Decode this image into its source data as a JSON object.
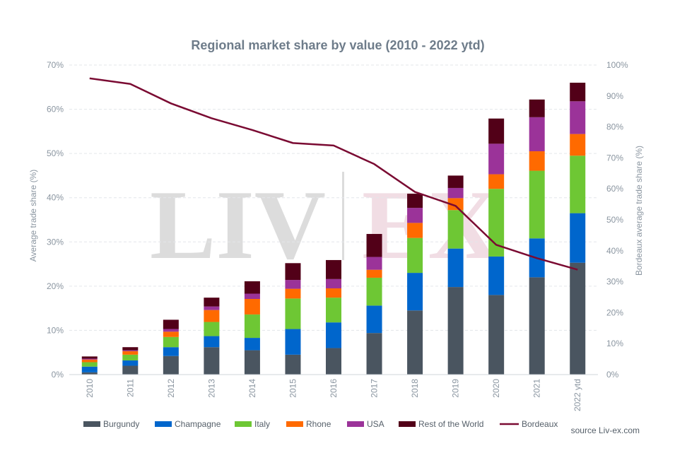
{
  "chart_data": {
    "type": "bar",
    "stacked": true,
    "title": "Regional market share by value (2010 - 2022 ytd)",
    "ylabel": "Average trade share (%)",
    "y2label": "Bordeaux average trade share (%)",
    "ylim": [
      0,
      70
    ],
    "y2lim": [
      0,
      100
    ],
    "yticks": [
      "0%",
      "10%",
      "20%",
      "30%",
      "40%",
      "50%",
      "60%",
      "70%"
    ],
    "y2ticks": [
      "0%",
      "10%",
      "20%",
      "30%",
      "40%",
      "50%",
      "60%",
      "70%",
      "80%",
      "90%",
      "100%"
    ],
    "categories": [
      "2010",
      "2011",
      "2012",
      "2013",
      "2014",
      "2015",
      "2016",
      "2017",
      "2018",
      "2019",
      "2020",
      "2021",
      "2022 ytd"
    ],
    "series": [
      {
        "name": "Burgundy",
        "color": "#4a5560",
        "values": [
          0.5,
          2.0,
          4.2,
          6.2,
          5.5,
          4.5,
          6.0,
          9.4,
          14.5,
          19.8,
          18.0,
          22.0,
          25.3
        ]
      },
      {
        "name": "Champagne",
        "color": "#0066cc",
        "values": [
          1.3,
          1.2,
          2.0,
          2.5,
          2.8,
          5.8,
          5.8,
          6.2,
          8.5,
          8.7,
          8.7,
          8.8,
          11.2
        ]
      },
      {
        "name": "Italy",
        "color": "#6ec734",
        "values": [
          1.0,
          1.3,
          2.3,
          3.2,
          5.3,
          6.9,
          5.6,
          6.3,
          7.9,
          8.7,
          15.3,
          15.3,
          13.0
        ]
      },
      {
        "name": "Rhone",
        "color": "#ff6a00",
        "values": [
          0.6,
          0.8,
          1.2,
          2.7,
          3.5,
          2.2,
          2.1,
          1.8,
          3.4,
          2.7,
          3.3,
          4.4,
          4.9
        ]
      },
      {
        "name": "USA",
        "color": "#9b3399",
        "values": [
          0.2,
          0.2,
          0.6,
          0.8,
          1.2,
          2.0,
          2.1,
          2.9,
          3.4,
          2.3,
          6.9,
          7.7,
          7.4
        ]
      },
      {
        "name": "Rest of the World",
        "color": "#520018",
        "values": [
          0.5,
          0.7,
          2.1,
          2.0,
          2.8,
          3.8,
          4.3,
          5.2,
          3.2,
          2.8,
          5.7,
          4.0,
          4.2
        ]
      }
    ],
    "line_series": {
      "name": "Bordeaux",
      "color": "#7a0a32",
      "axis": "right",
      "values": [
        95.7,
        93.9,
        87.6,
        82.8,
        79.0,
        74.8,
        74.0,
        68.0,
        59.0,
        54.5,
        41.9,
        37.6,
        33.9
      ]
    },
    "grid": true,
    "legend_position": "bottom",
    "source": "source Liv-ex.com",
    "watermark": "LIV|EX"
  }
}
